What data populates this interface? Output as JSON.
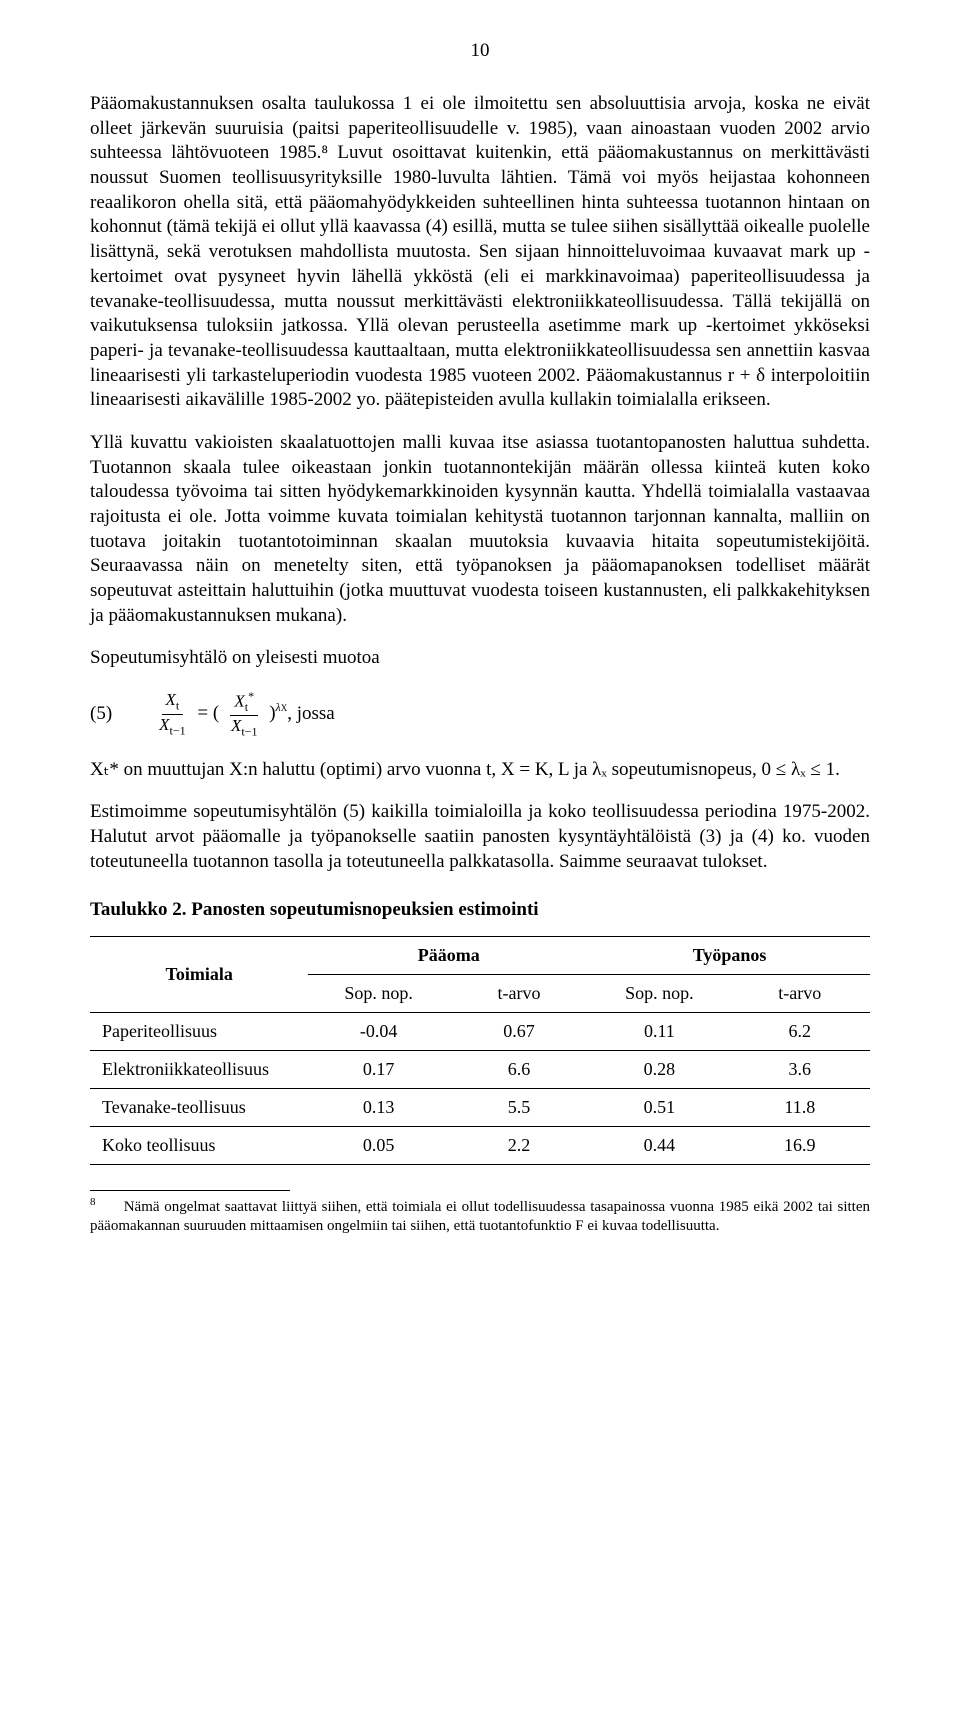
{
  "page_number": "10",
  "paragraphs": {
    "p1": "Pääomakustannuksen osalta taulukossa 1 ei ole ilmoitettu sen absoluuttisia arvoja, koska ne eivät olleet järkevän suuruisia (paitsi paperiteollisuudelle v. 1985), vaan ainoastaan vuoden 2002 arvio suhteessa lähtövuoteen 1985.⁸ Luvut osoittavat kuitenkin, että pääomakustannus on merkittävästi noussut Suomen teollisuusyrityksille 1980-luvulta lähtien. Tämä voi myös heijastaa kohonneen reaalikoron ohella sitä, että pääomahyödykkeiden suhteellinen hinta suhteessa tuotannon hintaan on kohonnut (tämä tekijä ei ollut yllä kaavassa (4) esillä, mutta se tulee siihen sisällyttää oikealle puolelle lisättynä, sekä verotuksen mahdollista muutosta. Sen sijaan hinnoitteluvoimaa kuvaavat mark up -kertoimet ovat pysyneet hyvin lähellä ykköstä (eli ei markkinavoimaa) paperiteollisuudessa ja tevanake-teollisuudessa, mutta noussut merkittävästi elektroniikkateollisuudessa. Tällä tekijällä on vaikutuksensa tuloksiin jatkossa. Yllä olevan perusteella asetimme mark up -kertoimet ykköseksi paperi- ja tevanake-teollisuudessa kauttaaltaan, mutta elektroniikkateollisuudessa sen annettiin kasvaa lineaarisesti yli tarkasteluperiodin vuodesta 1985 vuoteen 2002. Pääomakustannus r + δ interpoloitiin lineaarisesti aikavälille 1985-2002 yo. päätepisteiden avulla kullakin toimialalla erikseen.",
    "p2": "Yllä kuvattu vakioisten skaalatuottojen malli kuvaa itse asiassa tuotantopanosten haluttua suhdetta. Tuotannon skaala tulee oikeastaan jonkin tuotannontekijän määrän ollessa kiinteä kuten koko taloudessa työvoima tai sitten hyödykemarkkinoiden kysynnän kautta. Yhdellä toimialalla vastaavaa rajoitusta ei ole. Jotta voimme kuvata toimialan kehitystä tuotannon tarjonnan kannalta, malliin on tuotava joitakin tuotantotoiminnan skaalan muutoksia kuvaavia hitaita sopeutumistekijöitä. Seuraavassa näin on menetelty siten, että työpanoksen ja pääomapanoksen todelliset määrät sopeutuvat asteittain haluttuihin (jotka muuttuvat vuodesta toiseen kustannusten, eli palkkakehityksen ja pääomakustannuksen mukana).",
    "p3": "Sopeutumisyhtälö on yleisesti muotoa",
    "p4": "Xₜ* on muuttujan X:n haluttu (optimi) arvo vuonna t, X = K, L ja λₓ sopeutumisnopeus, 0 ≤ λₓ ≤ 1.",
    "p5": "Estimoimme sopeutumisyhtälön (5) kaikilla toimialoilla ja koko teollisuudessa periodina 1975-2002. Halutut arvot pääomalle ja työpanokselle saatiin panosten kysyntäyhtälöistä (3) ja (4) ko. vuoden toteutuneella tuotannon tasolla ja toteutuneella palkkatasolla. Saimme seuraavat tulokset."
  },
  "equation": {
    "number": "(5)",
    "jossa": ", jossa"
  },
  "table": {
    "title": "Taulukko 2.   Panosten sopeutumisnopeuksien estimointi",
    "header_toimiala": "Toimiala",
    "header_paaoma": "Pääoma",
    "header_tyopanos": "Työpanos",
    "header_sop": "Sop. nop.",
    "header_tarvo": "t-arvo",
    "rows": [
      {
        "label": "Paperiteollisuus",
        "c1": "-0.04",
        "c2": "0.67",
        "c3": "0.11",
        "c4": "6.2"
      },
      {
        "label": "Elektroniikkateollisuus",
        "c1": "0.17",
        "c2": "6.6",
        "c3": "0.28",
        "c4": "3.6"
      },
      {
        "label": "Tevanake-teollisuus",
        "c1": "0.13",
        "c2": "5.5",
        "c3": "0.51",
        "c4": "11.8"
      },
      {
        "label": "Koko teollisuus",
        "c1": "0.05",
        "c2": "2.2",
        "c3": "0.44",
        "c4": "16.9"
      }
    ]
  },
  "footnote": {
    "num": "8",
    "text": "Nämä ongelmat saattavat liittyä siihen, että toimiala ei ollut todellisuudessa tasapainossa vuonna 1985 eikä 2002 tai sitten pääomakannan suuruuden mittaamisen ongelmiin tai siihen, että tuotantofunktio F ei kuvaa todellisuutta."
  }
}
